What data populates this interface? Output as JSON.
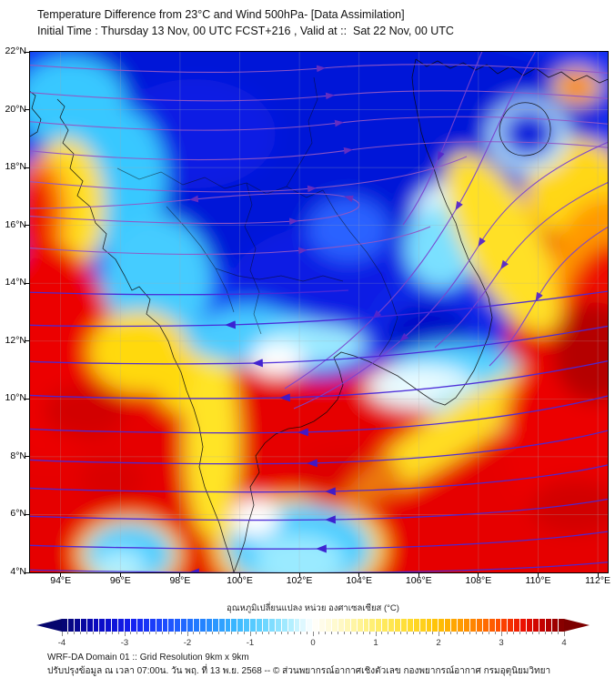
{
  "header": {
    "title": "Temperature Difference from 23°C and Wind 500hPa- [Data Assimilation]",
    "subtitle": "Initial Time : Thursday 13 Nov, 00 UTC FCST+216 , Valid at ::  Sat 22 Nov, 00 UTC"
  },
  "map": {
    "lat_labels": [
      "22°N",
      "20°N",
      "18°N",
      "16°N",
      "14°N",
      "12°N",
      "10°N",
      "8°N",
      "6°N",
      "4°N"
    ],
    "lon_labels": [
      "94°E",
      "96°E",
      "98°E",
      "100°E",
      "102°E",
      "104°E",
      "106°E",
      "108°E",
      "110°E",
      "112°E"
    ]
  },
  "colorbar": {
    "label": "อุณหภูมิเปลี่ยนแปลง หน่วย องศาเซลเซียส (°C)",
    "tick_labels": [
      "-4",
      "-3",
      "-2",
      "-1",
      "0",
      "1",
      "2",
      "3",
      "4"
    ],
    "min": -4,
    "max": 4,
    "segments": 80,
    "stops": [
      {
        "t": 0.0,
        "c": "#06066e"
      },
      {
        "t": 0.07,
        "c": "#0a0ac0"
      },
      {
        "t": 0.14,
        "c": "#1420f0"
      },
      {
        "t": 0.21,
        "c": "#1e50ff"
      },
      {
        "t": 0.28,
        "c": "#2382ff"
      },
      {
        "t": 0.345,
        "c": "#38b6ff"
      },
      {
        "t": 0.4,
        "c": "#66d4ff"
      },
      {
        "t": 0.45,
        "c": "#a8ecff"
      },
      {
        "t": 0.48,
        "c": "#dcf8ff"
      },
      {
        "t": 0.5,
        "c": "#ffffff"
      },
      {
        "t": 0.52,
        "c": "#fffce8"
      },
      {
        "t": 0.56,
        "c": "#fff8c0"
      },
      {
        "t": 0.62,
        "c": "#ffef72"
      },
      {
        "t": 0.69,
        "c": "#ffdd30"
      },
      {
        "t": 0.75,
        "c": "#ffc105"
      },
      {
        "t": 0.81,
        "c": "#ff8e00"
      },
      {
        "t": 0.87,
        "c": "#ff4e00"
      },
      {
        "t": 0.92,
        "c": "#ea0f00"
      },
      {
        "t": 0.96,
        "c": "#c00000"
      },
      {
        "t": 1.0,
        "c": "#7e0000"
      }
    ]
  },
  "footer": {
    "line1": "WRF-DA Domain 01 :: Grid Resolution 9km x 9km",
    "line2": "ปรับปรุงข้อมูล ณ เวลา 07:00น. วัน พฤ. ที่ 13 พ.ย. 2568 -- © ส่วนพยากรณ์อากาศเชิงตัวเลข กองพยากรณ์อากาศ กรมอุตุนิยมวิทยา"
  },
  "chart_data": {
    "type": "heatmap",
    "title": "Temperature Difference from 23°C and Wind 500hPa- [Data Assimilation]",
    "subtitle": "Initial Time : Thursday 13 Nov, 00 UTC FCST+216 , Valid at ::  Sat 22 Nov, 00 UTC",
    "units": "°C",
    "x_ticks_lon_E": [
      94,
      96,
      98,
      100,
      102,
      104,
      106,
      108,
      110,
      112
    ],
    "y_ticks_lat_N": [
      22,
      20,
      18,
      16,
      14,
      12,
      10,
      8,
      6,
      4
    ],
    "lon_range_E": [
      93.0,
      112.3
    ],
    "lat_range_N": [
      4,
      22
    ],
    "colorbar_range": [
      -4,
      4
    ],
    "values_grid_latN_by_lonE": {
      "lats": [
        22,
        20,
        18,
        16,
        14,
        12,
        10,
        8,
        6,
        4
      ],
      "lons": [
        94,
        96,
        98,
        100,
        102,
        104,
        106,
        108,
        110,
        112
      ],
      "temp_diff_C": [
        [
          -3.0,
          -3.5,
          -3.5,
          -3.5,
          -3.5,
          -3.5,
          -3.0,
          -2.5,
          -2.0,
          -2.5
        ],
        [
          -0.5,
          -2.5,
          -3.0,
          -3.5,
          -3.5,
          -3.5,
          -2.0,
          -0.5,
          -3.0,
          1.0
        ],
        [
          3.0,
          -1.5,
          -3.0,
          -3.5,
          -3.5,
          -3.0,
          -1.5,
          1.0,
          1.5,
          2.5
        ],
        [
          3.5,
          -1.0,
          -2.5,
          -3.0,
          -3.5,
          -3.0,
          -0.5,
          1.5,
          2.5,
          3.5
        ],
        [
          3.5,
          1.0,
          -1.0,
          -2.5,
          -3.0,
          -2.5,
          -1.5,
          -0.5,
          3.5,
          4.0
        ],
        [
          3.5,
          3.5,
          2.0,
          -1.5,
          -2.5,
          -2.0,
          -3.0,
          0.5,
          3.5,
          4.0
        ],
        [
          3.5,
          3.5,
          1.5,
          2.5,
          3.5,
          3.0,
          -0.5,
          3.5,
          3.5,
          3.5
        ],
        [
          3.5,
          3.5,
          2.0,
          3.0,
          3.5,
          3.5,
          3.5,
          3.5,
          3.5,
          3.5
        ],
        [
          3.5,
          2.0,
          3.5,
          0.5,
          -1.5,
          3.0,
          3.5,
          3.5,
          3.5,
          3.5
        ],
        [
          3.5,
          -1.0,
          3.0,
          1.0,
          -1.5,
          2.0,
          3.5,
          3.5,
          3.5,
          4.0
        ]
      ]
    },
    "wind_overlay": {
      "level_hPa": 500,
      "style": "streamlines with arrowheads",
      "pattern": "westerly flow (arrows eastward) north of about 15N; anticyclonic turning over Vietnam / South China Sea; easterly flow (arrows westward) south of about 14N"
    }
  }
}
